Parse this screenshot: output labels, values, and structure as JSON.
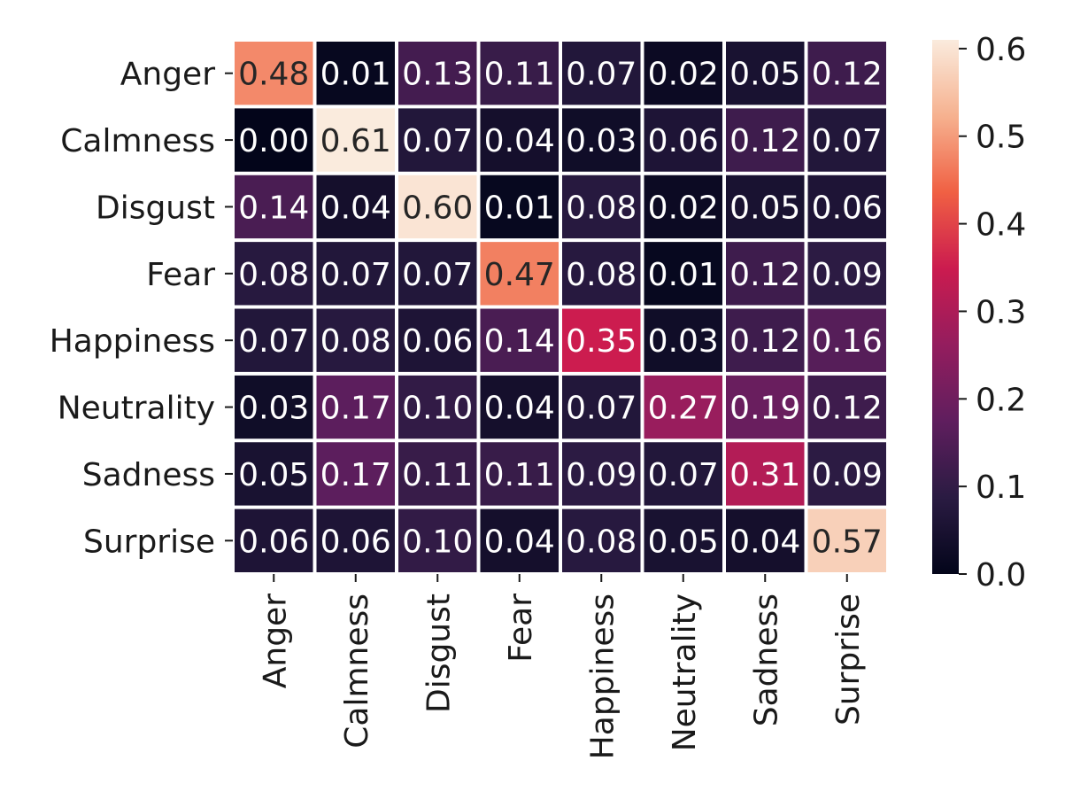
{
  "chart_data": {
    "type": "heatmap",
    "title": "",
    "xlabel": "",
    "ylabel": "",
    "rows": [
      "Anger",
      "Calmness",
      "Disgust",
      "Fear",
      "Happiness",
      "Neutrality",
      "Sadness",
      "Surprise"
    ],
    "columns": [
      "Anger",
      "Calmness",
      "Disgust",
      "Fear",
      "Happiness",
      "Neutrality",
      "Sadness",
      "Surprise"
    ],
    "values": [
      [
        0.48,
        0.01,
        0.13,
        0.11,
        0.07,
        0.02,
        0.05,
        0.12
      ],
      [
        0.0,
        0.61,
        0.07,
        0.04,
        0.03,
        0.06,
        0.12,
        0.07
      ],
      [
        0.14,
        0.04,
        0.6,
        0.01,
        0.08,
        0.02,
        0.05,
        0.06
      ],
      [
        0.08,
        0.07,
        0.07,
        0.47,
        0.08,
        0.01,
        0.12,
        0.09
      ],
      [
        0.07,
        0.08,
        0.06,
        0.14,
        0.35,
        0.03,
        0.12,
        0.16
      ],
      [
        0.03,
        0.17,
        0.1,
        0.04,
        0.07,
        0.27,
        0.19,
        0.12
      ],
      [
        0.05,
        0.17,
        0.11,
        0.11,
        0.09,
        0.07,
        0.31,
        0.09
      ],
      [
        0.06,
        0.06,
        0.1,
        0.04,
        0.08,
        0.05,
        0.04,
        0.57
      ]
    ],
    "cell_labels": [
      [
        "0.48",
        "0.01",
        "0.13",
        "0.11",
        "0.07",
        "0.02",
        "0.05",
        "0.12"
      ],
      [
        "0.00",
        "0.61",
        "0.07",
        "0.04",
        "0.03",
        "0.06",
        "0.12",
        "0.07"
      ],
      [
        "0.14",
        "0.04",
        "0.60",
        "0.01",
        "0.08",
        "0.02",
        "0.05",
        "0.06"
      ],
      [
        "0.08",
        "0.07",
        "0.07",
        "0.47",
        "0.08",
        "0.01",
        "0.12",
        "0.09"
      ],
      [
        "0.07",
        "0.08",
        "0.06",
        "0.14",
        "0.35",
        "0.03",
        "0.12",
        "0.16"
      ],
      [
        "0.03",
        "0.17",
        "0.10",
        "0.04",
        "0.07",
        "0.27",
        "0.19",
        "0.12"
      ],
      [
        "0.05",
        "0.17",
        "0.11",
        "0.11",
        "0.09",
        "0.07",
        "0.31",
        "0.09"
      ],
      [
        "0.06",
        "0.06",
        "0.10",
        "0.04",
        "0.08",
        "0.05",
        "0.04",
        "0.57"
      ]
    ],
    "colorbar": {
      "range": [
        0.0,
        0.61
      ],
      "ticks": [
        0.0,
        0.1,
        0.2,
        0.3,
        0.4,
        0.5,
        0.6
      ],
      "tick_labels": [
        "0.0",
        "0.1",
        "0.2",
        "0.3",
        "0.4",
        "0.5",
        "0.6"
      ],
      "placement": "right",
      "colormap": "rocket",
      "colormap_stops": [
        "#03051a",
        "#2a1b42",
        "#5f1e5e",
        "#941d5e",
        "#cb1b4f",
        "#f06043",
        "#f6b18f",
        "#faebdd"
      ]
    },
    "grid": true,
    "cell_separator_color": "#ffffff"
  }
}
